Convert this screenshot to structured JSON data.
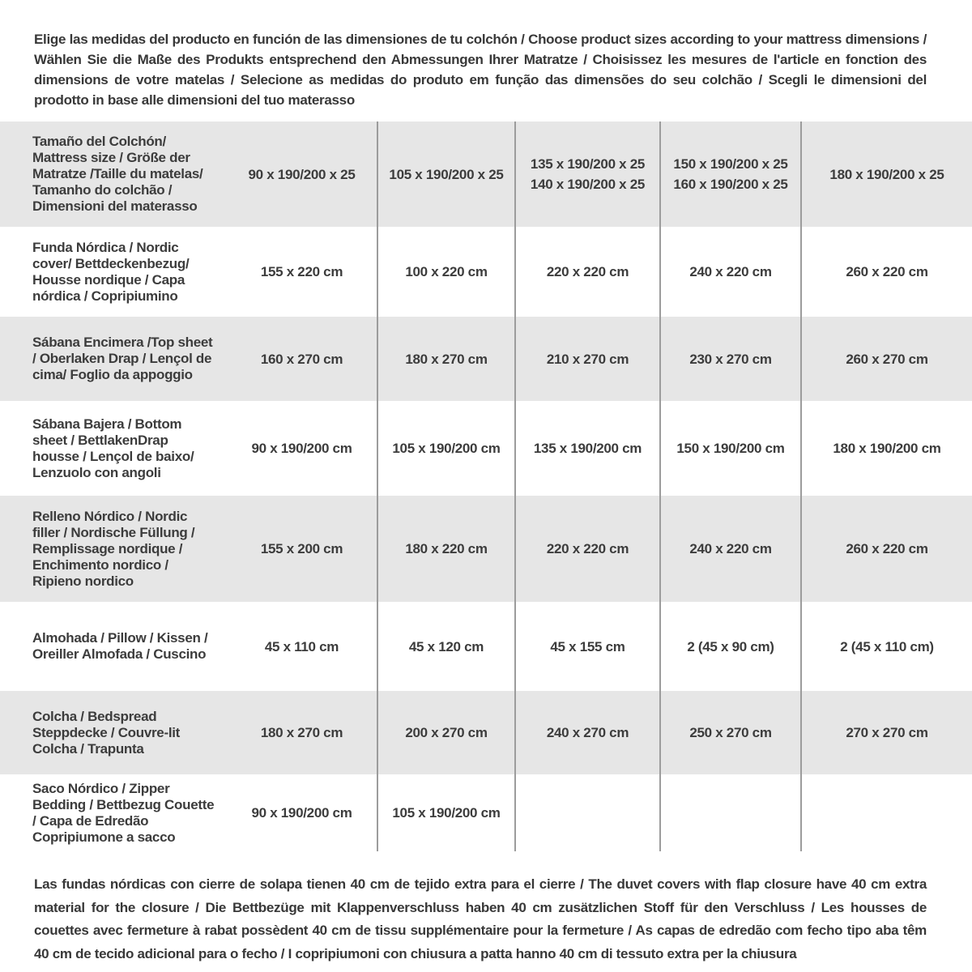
{
  "intro": "Elige las medidas del producto en función de las dimensiones de tu colchón / Choose product sizes according to your mattress dimensions / Wählen Sie die Maße des Produkts entsprechend den Abmessungen Ihrer Matratze / Choisissez les mesures de l'article en fonction des dimensions de votre matelas / Selecione as medidas do produto em função das dimensões do seu colchão / Scegli le dimensioni del prodotto in base alle dimensioni del tuo materasso",
  "table": {
    "header": {
      "label": "Tamaño del Colchón/ Mattress size / Größe der Matratze /Taille du matelas/ Tamanho do colchão / Dimensioni del materasso",
      "columns": [
        [
          "90 x 190/200 x 25"
        ],
        [
          "105 x 190/200 x 25"
        ],
        [
          "135 x 190/200 x 25",
          "140 x 190/200 x 25"
        ],
        [
          "150 x 190/200 x 25",
          "160 x 190/200 x 25"
        ],
        [
          "180 x 190/200 x 25"
        ]
      ]
    },
    "rows": [
      {
        "label": "Funda Nórdica /  Nordic cover/ Bettdeckenbezug/ Housse nordique  / Capa nórdica / Copripiumino",
        "values": [
          "155 x 220 cm",
          "100 x 220 cm",
          "220 x 220 cm",
          "240 x 220 cm",
          "260 x 220 cm"
        ]
      },
      {
        "label": "Sábana Encimera /Top sheet / Oberlaken Drap / Lençol de cima/ Foglio da appoggio",
        "values": [
          "160 x 270 cm",
          "180 x 270 cm",
          "210 x 270 cm",
          "230 x 270 cm",
          "260 x 270 cm"
        ]
      },
      {
        "label": "Sábana Bajera / Bottom sheet / BettlakenDrap housse / Lençol de baixo/ Lenzuolo con angoli",
        "values": [
          "90 x 190/200 cm",
          "105 x 190/200 cm",
          "135 x 190/200 cm",
          "150 x 190/200 cm",
          "180 x 190/200 cm"
        ]
      },
      {
        "label": "Relleno Nórdico / Nordic filler / Nordische Füllung / Remplissage nordique / Enchimento nordico / Ripieno nordico",
        "values": [
          "155 x 200 cm",
          "180 x 220 cm",
          "220 x 220 cm",
          "240 x 220 cm",
          "260 x 220 cm"
        ]
      },
      {
        "label": "Almohada  / Pillow / Kissen / Oreiller Almofada / Cuscino",
        "values": [
          "45 x 110 cm",
          "45 x 120 cm",
          "45 x 155 cm",
          "2 (45 x 90 cm)",
          "2 (45 x 110 cm)"
        ]
      },
      {
        "label": "Colcha / Bedspread Steppdecke / Couvre-lit Colcha / Trapunta",
        "values": [
          "180 x 270 cm",
          "200 x 270 cm",
          "240 x 270 cm",
          "250 x 270 cm",
          "270 x 270 cm"
        ]
      },
      {
        "label": "Saco Nórdico / Zipper Bedding / Bettbezug Couette  / Capa de Edredão Copripiumone a sacco",
        "values": [
          "90 x 190/200 cm",
          "105 x 190/200 cm",
          "",
          "",
          ""
        ]
      }
    ]
  },
  "footnote": "Las fundas nórdicas con cierre de solapa tienen 40 cm de tejido extra para el cierre  / The duvet covers with flap closure have 40 cm extra material for the closure / Die Bettbezüge mit Klappenverschluss haben 40 cm zusätzlichen Stoff für den Verschluss / Les housses de couettes avec fermeture à rabat possèdent 40 cm de tissu supplémentaire pour la fermeture / As capas de edredão com fecho tipo aba têm 40 cm de tecido adicional para o fecho / I copripiumoni con chiusura a patta hanno 40 cm di tessuto extra per la chiusura",
  "colors": {
    "row_alt_background": "#e6e6e6",
    "divider": "#9c9c9c",
    "text": "#3c3c3c"
  }
}
